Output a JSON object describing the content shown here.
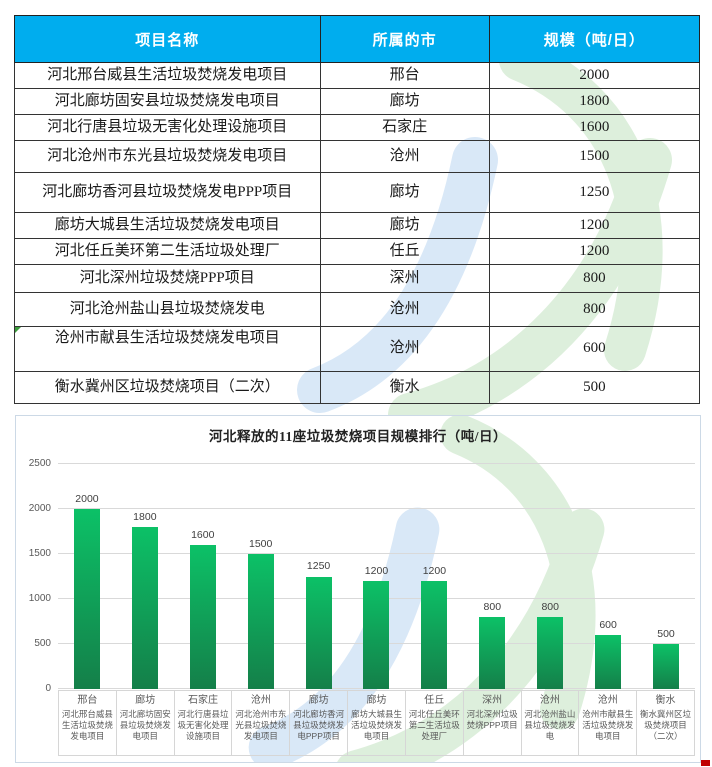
{
  "table": {
    "headers": [
      "项目名称",
      "所属的市",
      "规模（吨/日）"
    ],
    "rows": [
      {
        "name": "河北邢台威县生活垃圾焚烧发电项目",
        "city": "邢台",
        "scale": "2000"
      },
      {
        "name": "河北廊坊固安县垃圾焚烧发电项目",
        "city": "廊坊",
        "scale": "1800"
      },
      {
        "name": "河北行唐县垃圾无害化处理设施项目",
        "city": "石家庄",
        "scale": "1600"
      },
      {
        "name": "河北沧州市东光县垃圾焚烧发电项目",
        "city": "沧州",
        "scale": "1500"
      },
      {
        "name": "河北廊坊香河县垃圾焚烧发电PPP项目",
        "city": "廊坊",
        "scale": "1250"
      },
      {
        "name": "廊坊大城县生活垃圾焚烧发电项目",
        "city": "廊坊",
        "scale": "1200"
      },
      {
        "name": "河北任丘美环第二生活垃圾处理厂",
        "city": "任丘",
        "scale": "1200"
      },
      {
        "name": "河北深州垃圾焚烧PPP项目",
        "city": "深州",
        "scale": "800"
      },
      {
        "name": "河北沧州盐山县垃圾焚烧发电",
        "city": "沧州",
        "scale": "800"
      },
      {
        "name": "沧州市献县生活垃圾焚烧发电项目",
        "city": "沧州",
        "scale": "600",
        "corner_mark": true
      },
      {
        "name": "衡水冀州区垃圾焚烧项目（二次）",
        "city": "衡水",
        "scale": "500"
      }
    ]
  },
  "chart_data": {
    "type": "bar",
    "title": "河北释放的11座垃圾焚烧项目规模排行（吨/日）",
    "categories": [
      "邢台",
      "廊坊",
      "石家庄",
      "沧州",
      "廊坊",
      "廊坊",
      "任丘",
      "深州",
      "沧州",
      "沧州",
      "衡水"
    ],
    "category_projects": [
      "河北邢台威县生活垃圾焚烧发电项目",
      "河北廊坊固安县垃圾焚烧发电项目",
      "河北行唐县垃圾无害化处理设施项目",
      "河北沧州市东光县垃圾焚烧发电项目",
      "河北廊坊香河县垃圾焚烧发电PPP项目",
      "廊坊大城县生活垃圾焚烧发电项目",
      "河北任丘美环第二生活垃圾处理厂",
      "河北深州垃圾焚烧PPP项目",
      "河北沧州盐山县垃圾焚烧发电",
      "沧州市献县生活垃圾焚烧发电项目",
      "衡水冀州区垃圾焚烧项目（二次）"
    ],
    "values": [
      2000,
      1800,
      1600,
      1500,
      1250,
      1200,
      1200,
      800,
      800,
      600,
      500
    ],
    "xlabel": "",
    "ylabel": "",
    "ylim": [
      0,
      2500
    ],
    "yticks": [
      0,
      500,
      1000,
      1500,
      2000,
      2500
    ],
    "grid": true,
    "legend": "none",
    "data_labels": true
  },
  "colors": {
    "table_header_bg": "#00ADEE",
    "table_header_text": "#ffffff",
    "bar_gradient_top": "#0cc167",
    "bar_gradient_bottom": "#147f49",
    "watermark_green": "#ddefdc",
    "watermark_blue": "#d9e8f7",
    "red_mark": "#c00000"
  }
}
